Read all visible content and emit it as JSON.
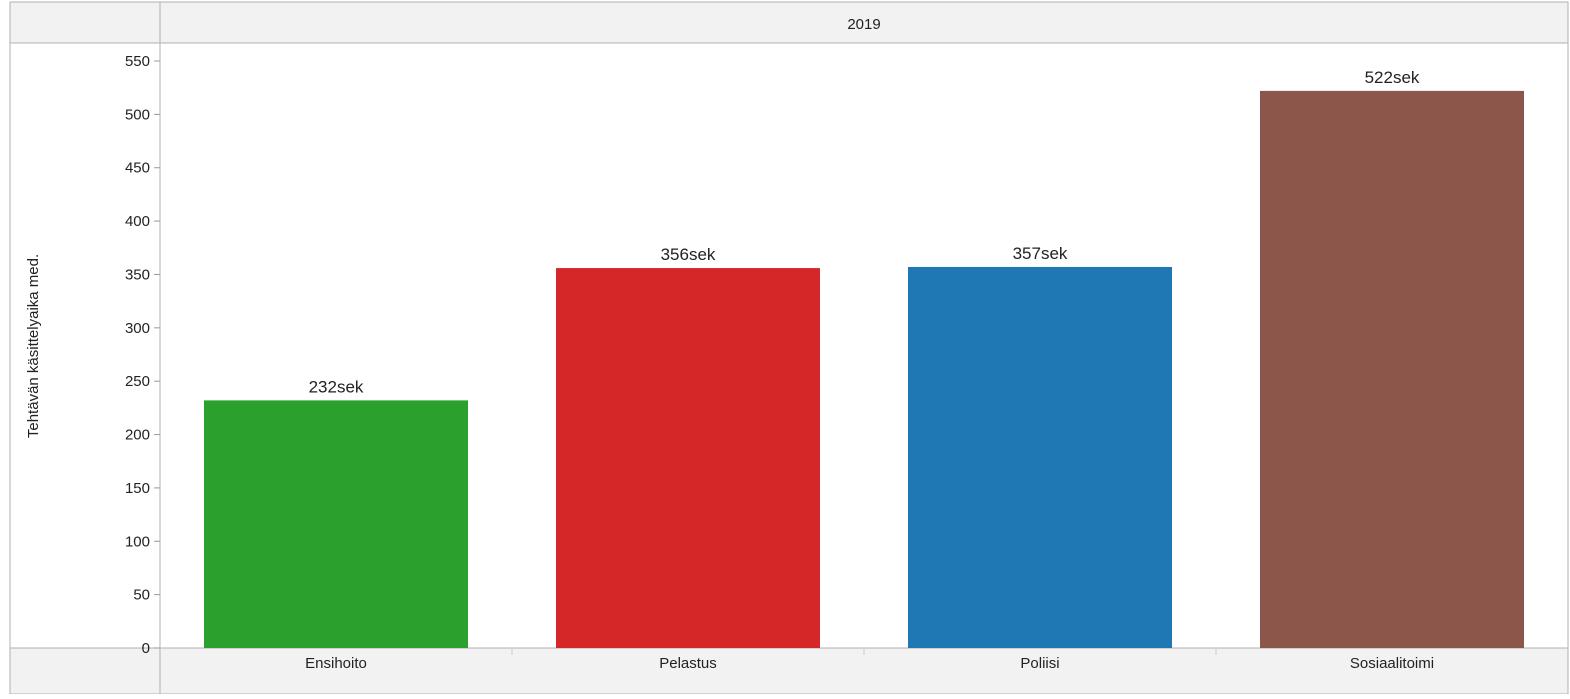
{
  "chart_data": {
    "type": "bar",
    "header": "2019",
    "ylabel": "Tehtävän käsittelyaika med.",
    "xlabel": "",
    "categories": [
      "Ensihoito",
      "Pelastus",
      "Poliisi",
      "Sosiaalitoimi"
    ],
    "values": [
      232,
      356,
      357,
      522
    ],
    "data_labels": [
      "232sek",
      "356sek",
      "357sek",
      "522sek"
    ],
    "colors": [
      "#2ca02c",
      "#d62728",
      "#1f77b4",
      "#8c564b"
    ],
    "ylim": [
      0,
      550
    ],
    "yticks": [
      "0",
      "50",
      "100",
      "150",
      "200",
      "250",
      "300",
      "350",
      "400",
      "450",
      "500",
      "550"
    ],
    "grid": false,
    "legend": "none"
  }
}
